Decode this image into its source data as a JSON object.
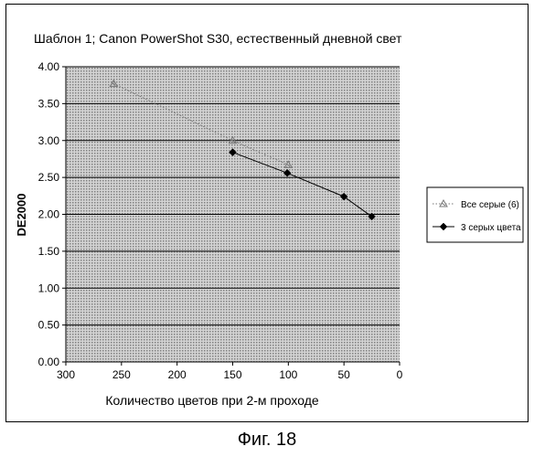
{
  "chart_data": {
    "type": "line",
    "title": "Шаблон 1; Canon PowerShot S30, естественный дневной свет",
    "xlabel": "Количество цветов при 2-м проходе",
    "ylabel": "DE2000",
    "xlim": [
      300,
      0
    ],
    "ylim": [
      0,
      4
    ],
    "x_reversed": true,
    "x_ticks": [
      "300",
      "250",
      "200",
      "150",
      "100",
      "50",
      "0"
    ],
    "y_ticks": [
      "0.00",
      "0.50",
      "1.00",
      "1.50",
      "2.00",
      "2.50",
      "3.00",
      "3.50",
      "4.00"
    ],
    "grid": "horizontal",
    "legend_position": "right",
    "series": [
      {
        "name": "Все серые (6)",
        "marker": "x-triangle",
        "line_style": "dotted",
        "color": "#777777",
        "x": [
          257,
          150,
          100
        ],
        "y": [
          3.77,
          3.0,
          2.67
        ]
      },
      {
        "name": "3 серых цвета",
        "marker": "diamond",
        "line_style": "solid",
        "color": "#000000",
        "x": [
          150,
          101,
          50,
          25
        ],
        "y": [
          2.84,
          2.56,
          2.24,
          1.97
        ]
      }
    ]
  },
  "caption": "Фиг. 18"
}
